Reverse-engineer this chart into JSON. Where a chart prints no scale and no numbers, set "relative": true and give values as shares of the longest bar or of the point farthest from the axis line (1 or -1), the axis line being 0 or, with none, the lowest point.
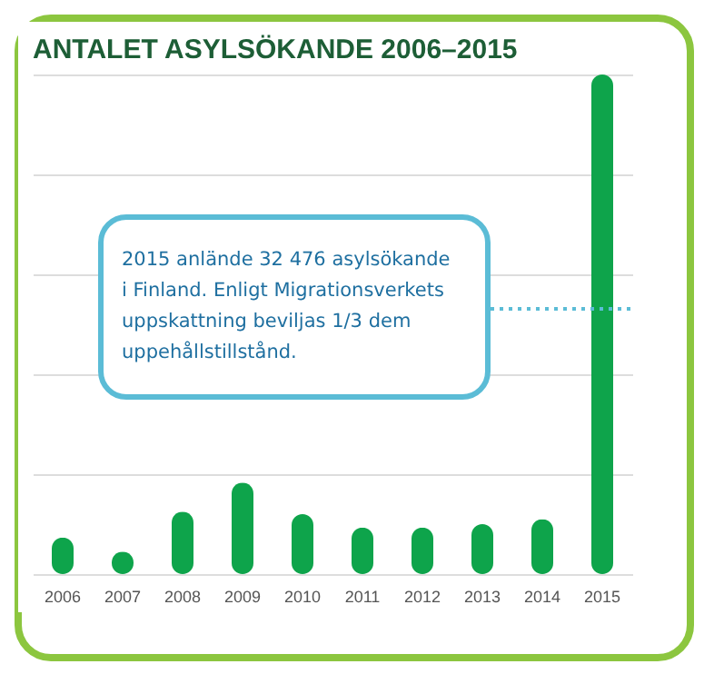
{
  "chart_data": {
    "type": "bar",
    "title": "ANTALET ASYLSÖKANDE 2006–2015",
    "categories": [
      "2006",
      "2007",
      "2008",
      "2009",
      "2010",
      "2011",
      "2012",
      "2013",
      "2014",
      "2015"
    ],
    "values": [
      0.073,
      0.045,
      0.125,
      0.183,
      0.12,
      0.093,
      0.093,
      0.1,
      0.11,
      1
    ],
    "color": "#0ea44b",
    "relative": true,
    "grid": "y",
    "annotations": [
      "2015 anlände 32 476 asylsökande\ni Finland. Enligt Migrationsverkets\nuppskattning beviljas 1/3 dem\nuppehållstillstånd."
    ]
  }
}
